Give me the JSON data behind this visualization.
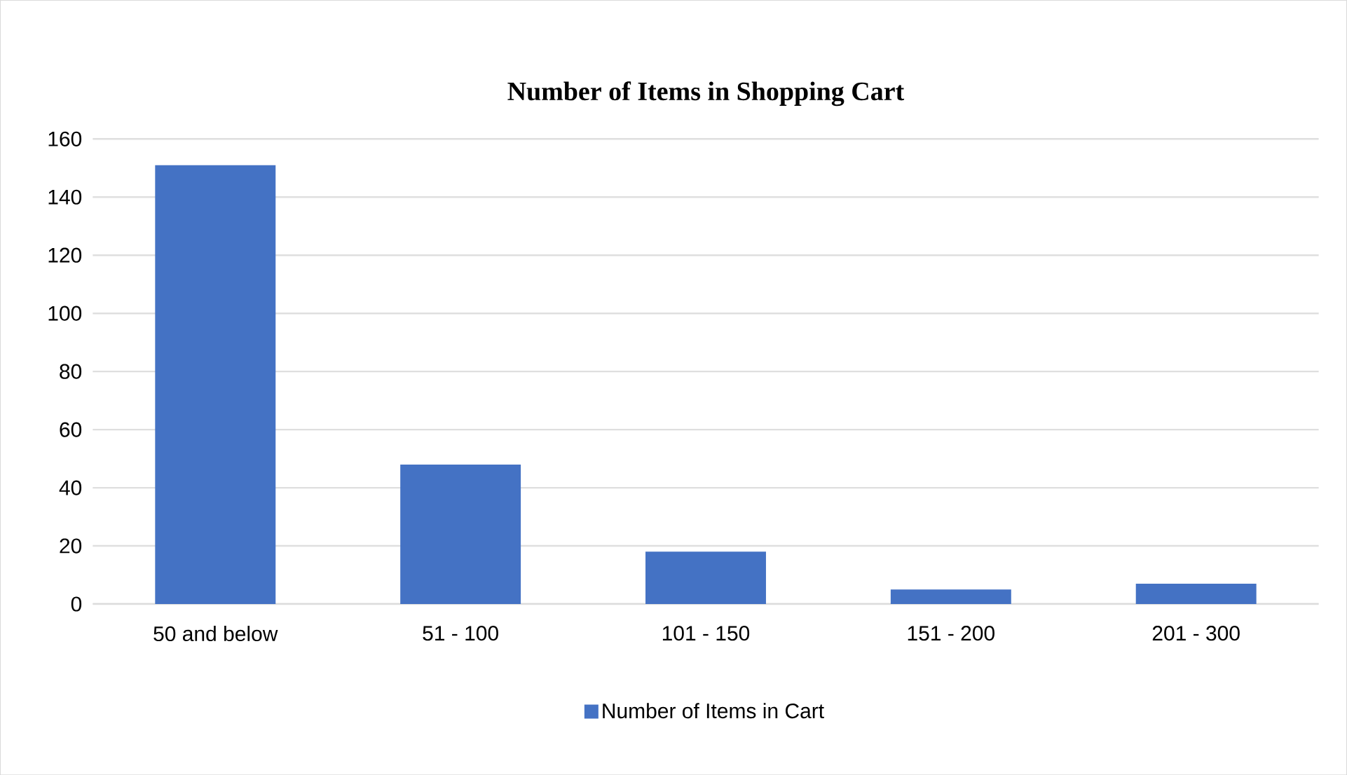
{
  "chart_data": {
    "type": "bar",
    "title": "Number of Items in Shopping Cart",
    "categories": [
      "50 and below",
      "51 - 100",
      "101 - 150",
      "151 - 200",
      "201 - 300"
    ],
    "series": [
      {
        "name": "Number of Items in Cart",
        "color": "#4472c4",
        "values": [
          151,
          48,
          18,
          5,
          7
        ]
      }
    ],
    "ylim": [
      0,
      160
    ],
    "yticks": [
      0,
      20,
      40,
      60,
      80,
      100,
      120,
      140,
      160
    ],
    "grid": "y",
    "legend": "bottom"
  }
}
